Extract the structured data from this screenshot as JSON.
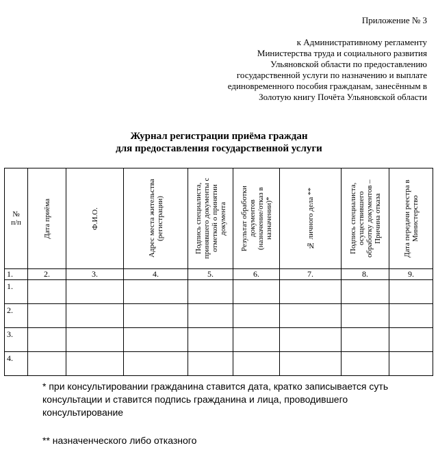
{
  "appendix": "Приложение № 3",
  "address_lines": [
    "к Административному регламенту",
    "Министерства труда и социального развития",
    "Ульяновской области по предоставлению",
    "государственной услуги по назначению и выплате",
    "единовременного пособия гражданам, занесённым в",
    "Золотую книгу Почёта Ульяновской области"
  ],
  "title_lines": [
    "Журнал регистрации приёма граждан",
    "для предоставления государственной услуги"
  ],
  "table": {
    "headers": [
      "№ п/п",
      "Дата приёма",
      "Ф.И.О.",
      "Адрес места жительства (регистрации)",
      "Подпись специалиста, принявшего документы с отметкой о принятии документа",
      "Результат обработки документов (назначение/отказ в назначении)*",
      "№ личного дела **",
      "Подпись специалиста, осуществившего обработку документов – Причина отказа",
      "Дата передачи реестра в Министерство"
    ],
    "column_numbers": [
      "1.",
      "2.",
      "3.",
      "4.",
      "5.",
      "6.",
      "7.",
      "8.",
      "9."
    ],
    "rows": [
      "1.",
      "2.",
      "3.",
      "4."
    ]
  },
  "notes": [
    "* при консультировании гражданина ставится дата, кратко записывается суть консультации и ставится подпись гражданина и лица, проводившего консультирование",
    "** назначенческого либо отказного"
  ]
}
